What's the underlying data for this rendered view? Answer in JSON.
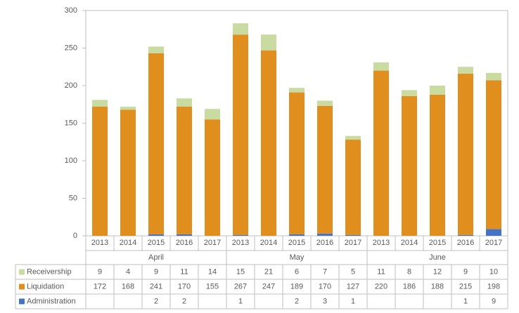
{
  "chart_data": {
    "type": "stacked-bar",
    "groups": [
      {
        "name": "April",
        "categories": [
          "2013",
          "2014",
          "2015",
          "2016",
          "2017"
        ]
      },
      {
        "name": "May",
        "categories": [
          "2013",
          "2014",
          "2015",
          "2016",
          "2017"
        ]
      },
      {
        "name": "June",
        "categories": [
          "2013",
          "2014",
          "2015",
          "2016",
          "2017"
        ]
      }
    ],
    "series": [
      {
        "name": "Administration",
        "color": "#4472c4",
        "values": [
          null,
          null,
          2,
          2,
          null,
          1,
          null,
          2,
          3,
          1,
          null,
          null,
          null,
          1,
          9
        ]
      },
      {
        "name": "Liquidation",
        "color": "#e08e1e",
        "values": [
          172,
          168,
          241,
          170,
          155,
          267,
          247,
          189,
          170,
          127,
          220,
          186,
          188,
          215,
          198
        ]
      },
      {
        "name": "Receivership",
        "color": "#c9dba0",
        "values": [
          9,
          4,
          9,
          11,
          14,
          15,
          21,
          6,
          7,
          5,
          11,
          8,
          12,
          9,
          10
        ]
      }
    ],
    "ylim": [
      0,
      300
    ],
    "yticks": [
      0,
      50,
      100,
      150,
      200,
      250,
      300
    ]
  }
}
